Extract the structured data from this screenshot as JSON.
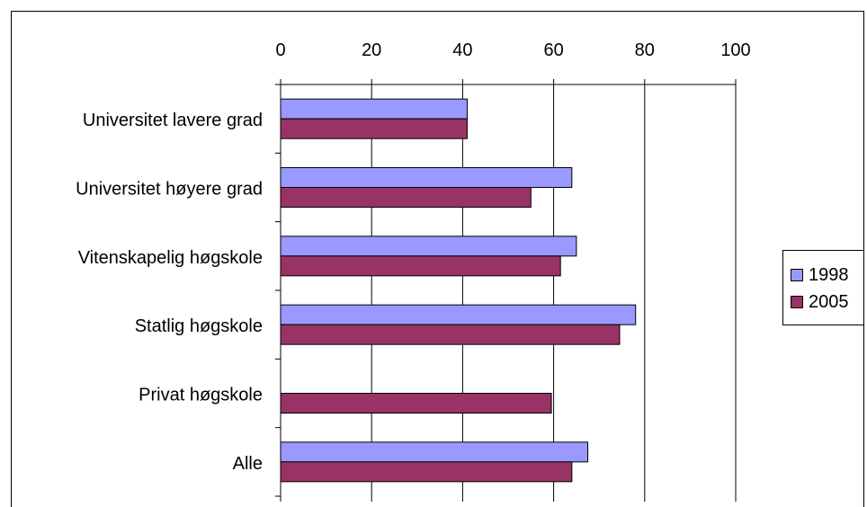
{
  "chart_data": {
    "type": "bar",
    "orientation": "horizontal",
    "categories": [
      "Universitet lavere grad",
      "Universitet høyere grad",
      "Vitenskapelig høgskole",
      "Statlig høgskole",
      "Privat høgskole",
      "Alle"
    ],
    "series": [
      {
        "name": "1998",
        "color": "#9999ff",
        "values": [
          41,
          64,
          65,
          78,
          null,
          67.5
        ]
      },
      {
        "name": "2005",
        "color": "#993366",
        "values": [
          41,
          55,
          61.5,
          74.5,
          59.5,
          64
        ]
      }
    ],
    "xlim": [
      0,
      100
    ],
    "x_ticks": [
      "0",
      "20",
      "40",
      "60",
      "80",
      "100"
    ],
    "x_axis_position": "top",
    "grid": "vertical major gridlines",
    "legend_position": "right"
  }
}
